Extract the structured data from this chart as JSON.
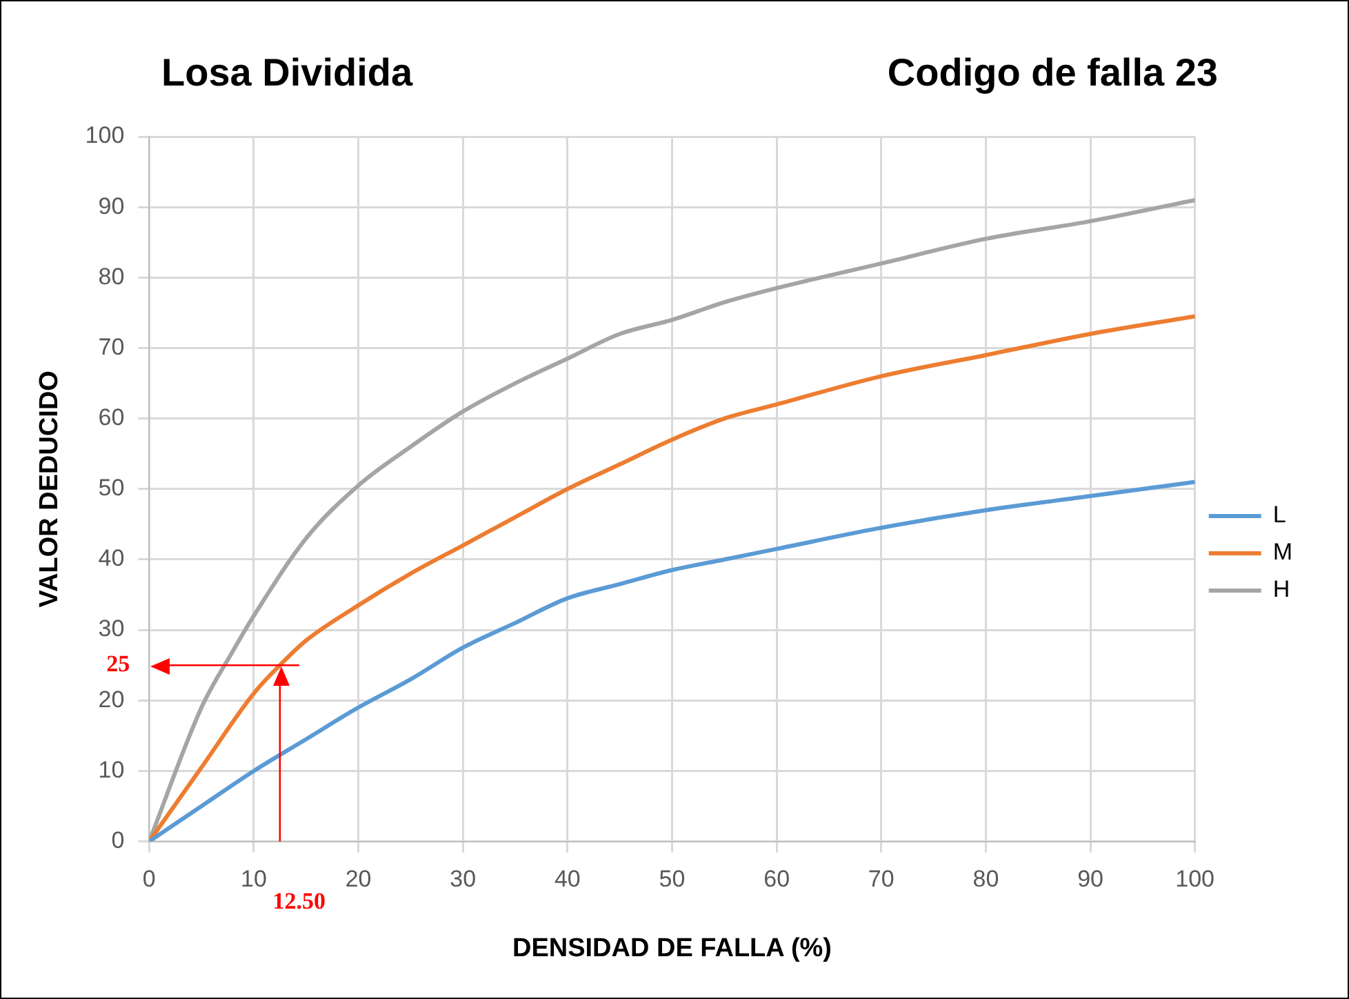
{
  "chart_data": {
    "type": "line",
    "title": "Losa Dividida",
    "subtitle": "Codigo de falla 23",
    "xlabel": "DENSIDAD DE FALLA (%)",
    "ylabel": "VALOR DEDUCIDO",
    "xlim": [
      0,
      100
    ],
    "xticks": [
      0,
      10,
      20,
      30,
      40,
      50,
      60,
      70,
      80,
      90,
      100
    ],
    "ylim": [
      0,
      100
    ],
    "yticks": [
      0,
      10,
      20,
      30,
      40,
      50,
      60,
      70,
      80,
      90,
      100
    ],
    "grid": true,
    "legend": "right",
    "marker": "none",
    "line_style": "solid",
    "series": [
      {
        "name": "L",
        "color": "#5b9bd5",
        "x": [
          0,
          5,
          10,
          15,
          20,
          25,
          30,
          35,
          40,
          45,
          50,
          55,
          60,
          70,
          80,
          90,
          100
        ],
        "values": [
          0,
          5,
          10,
          14.5,
          19,
          23,
          27.5,
          31,
          34.5,
          36.5,
          38.5,
          40,
          41.5,
          44.5,
          47,
          49,
          51
        ]
      },
      {
        "name": "M",
        "color": "#ed7d31",
        "x": [
          0,
          5,
          10,
          12.5,
          15,
          20,
          25,
          30,
          35,
          40,
          45,
          50,
          55,
          60,
          70,
          80,
          90,
          100
        ],
        "values": [
          0,
          10.5,
          21,
          25,
          28.5,
          33.5,
          38,
          42,
          46,
          50,
          53.5,
          57,
          60,
          62,
          66,
          69,
          72,
          74.5
        ]
      },
      {
        "name": "H",
        "color": "#a5a5a5",
        "x": [
          0,
          5,
          8,
          10,
          15,
          20,
          25,
          30,
          35,
          40,
          45,
          50,
          55,
          60,
          70,
          80,
          90,
          100
        ],
        "values": [
          0,
          19,
          27,
          32,
          43,
          50.5,
          56,
          61,
          65,
          68.5,
          72,
          74,
          76.5,
          78.5,
          82,
          85.5,
          88,
          91
        ]
      }
    ],
    "ref_lines": [
      {
        "axis": "y",
        "value": 25,
        "label": "25",
        "color": "#ff0000"
      },
      {
        "axis": "x",
        "value": 12.5,
        "label": "12.50",
        "color": "#ff0000"
      }
    ]
  }
}
